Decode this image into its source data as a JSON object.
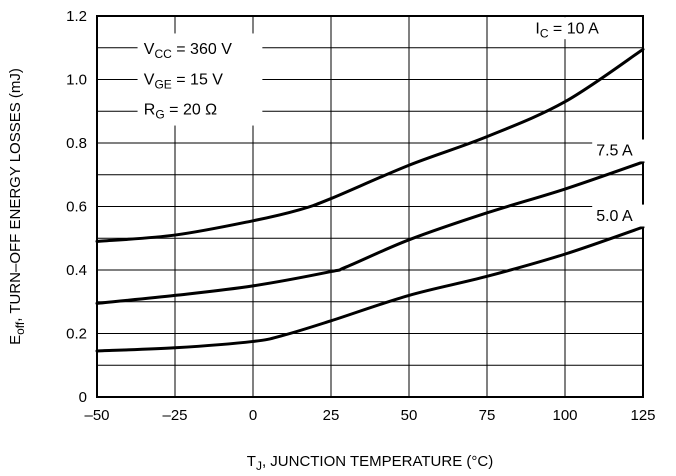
{
  "chart_data": {
    "type": "line",
    "xlabel": {
      "main": "T",
      "sub": "J",
      "rest": ", JUNCTION TEMPERATURE (°C)"
    },
    "ylabel": {
      "main": "E",
      "sub": "off",
      "rest": ", TURN–OFF ENERGY LOSSES (mJ)"
    },
    "xlim": [
      -50,
      125
    ],
    "ylim": [
      0,
      1.2
    ],
    "xticks": [
      -50,
      -25,
      0,
      25,
      50,
      75,
      100,
      125
    ],
    "xtick_labels": [
      "–50",
      "–25",
      "0",
      "25",
      "50",
      "75",
      "100",
      "125"
    ],
    "yticks": [
      0,
      0.2,
      0.4,
      0.6,
      0.8,
      1.0,
      1.2
    ],
    "ytick_labels": [
      "0",
      "0.2",
      "0.4",
      "0.6",
      "0.8",
      "1.0",
      "1.2"
    ],
    "grid": true,
    "minor_grid_y": [
      0.1,
      0.3,
      0.5,
      0.7,
      0.9,
      1.1
    ],
    "conditions": [
      {
        "main": "V",
        "sub": "CC",
        "rest": " = 360 V"
      },
      {
        "main": "V",
        "sub": "GE",
        "rest": " = 15 V"
      },
      {
        "main": "R",
        "sub": "G",
        "rest": " = 20 Ω"
      }
    ],
    "series": [
      {
        "name": "I_C = 10 A",
        "label": {
          "main": "I",
          "sub": "C",
          "rest": " = 10 A"
        },
        "x": [
          -50,
          -25,
          0,
          15,
          25,
          50,
          75,
          100,
          125
        ],
        "y": [
          0.49,
          0.51,
          0.555,
          0.59,
          0.625,
          0.73,
          0.82,
          0.93,
          1.095
        ]
      },
      {
        "name": "7.5 A",
        "label": {
          "main": "7.5 A",
          "sub": "",
          "rest": ""
        },
        "x": [
          -50,
          -25,
          0,
          25,
          30,
          50,
          75,
          100,
          125
        ],
        "y": [
          0.295,
          0.32,
          0.35,
          0.395,
          0.41,
          0.495,
          0.58,
          0.655,
          0.74
        ]
      },
      {
        "name": "5.0 A",
        "label": {
          "main": "5.0 A",
          "sub": "",
          "rest": ""
        },
        "x": [
          -50,
          -25,
          0,
          10,
          25,
          50,
          75,
          100,
          125
        ],
        "y": [
          0.145,
          0.155,
          0.175,
          0.195,
          0.24,
          0.32,
          0.38,
          0.45,
          0.535
        ]
      }
    ]
  }
}
